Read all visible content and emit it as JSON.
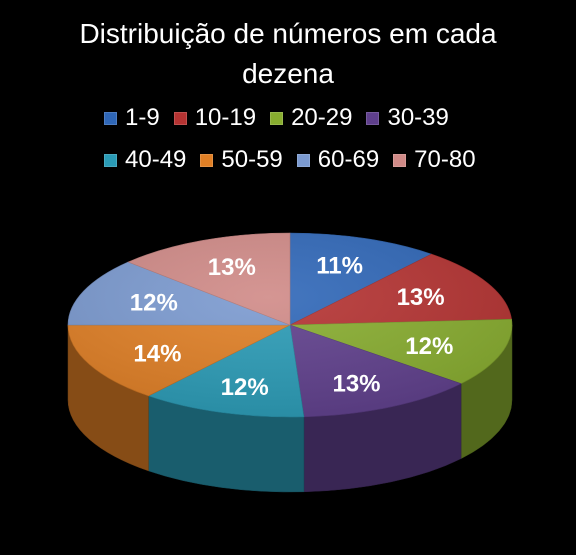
{
  "chart_data": {
    "type": "pie",
    "title": "Distribuição de números em cada dezena",
    "categories": [
      "1-9",
      "10-19",
      "20-29",
      "30-39",
      "40-49",
      "50-59",
      "60-69",
      "70-80"
    ],
    "values": [
      11,
      13,
      12,
      13,
      12,
      14,
      12,
      13
    ],
    "value_labels": [
      "11%",
      "13%",
      "12%",
      "13%",
      "12%",
      "14%",
      "12%",
      "13%"
    ],
    "colors": [
      "#2f67b8",
      "#b53332",
      "#88ad2f",
      "#5f3f8c",
      "#2a9bb6",
      "#e07f25",
      "#7b9ad0",
      "#d08a87"
    ],
    "legend_position": "top",
    "style": "3d"
  }
}
